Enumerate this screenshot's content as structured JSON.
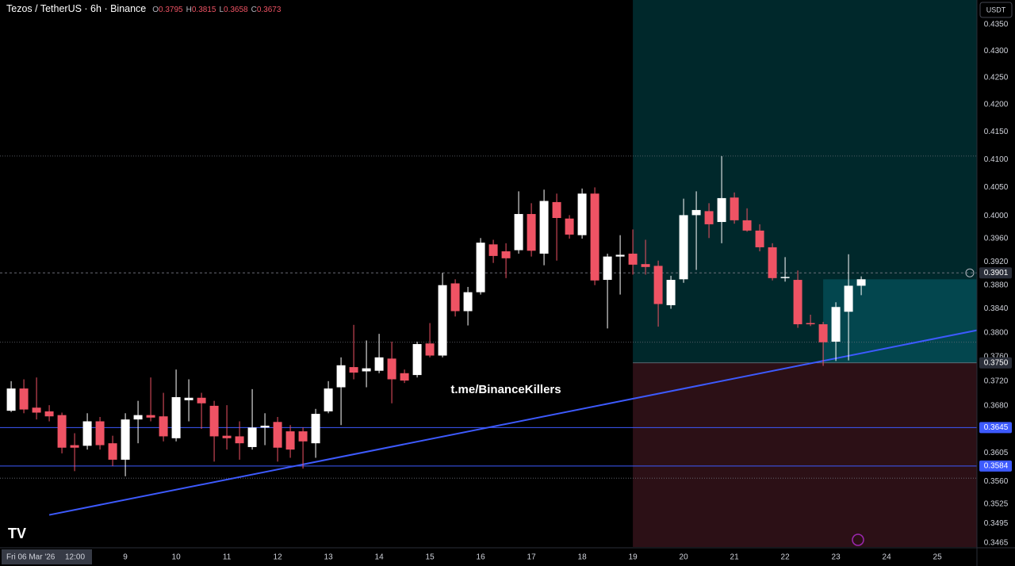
{
  "chart_data": {
    "type": "candlestick",
    "title": "Tezos / TetherUS · 6h · Binance",
    "header": [
      {
        "key": "O",
        "value": "0.3795"
      },
      {
        "key": "H",
        "value": "0.3815"
      },
      {
        "key": "L",
        "value": "0.3658"
      },
      {
        "key": "C",
        "value": "0.3673"
      }
    ],
    "currency": "USDT",
    "watermark": "t.me/BinanceKillers",
    "crosshair_date": "Fri 06 Mar '26",
    "crosshair_time": "12:00",
    "up_color": "#ffffff",
    "down_color": "#ef5364",
    "log_y": true,
    "xlim": [
      6.53,
      25.78
    ],
    "ylim": [
      0.3459,
      0.4397
    ],
    "xticks": [
      9,
      10,
      11,
      12,
      13,
      14,
      15,
      16,
      17,
      18,
      19,
      20,
      21,
      22,
      23,
      24,
      25
    ],
    "yticks": [
      {
        "value": 0.435,
        "label": "0.4350"
      },
      {
        "value": 0.43,
        "label": "0.4300"
      },
      {
        "value": 0.425,
        "label": "0.4250"
      },
      {
        "value": 0.42,
        "label": "0.4200"
      },
      {
        "value": 0.415,
        "label": "0.4150"
      },
      {
        "value": 0.41,
        "label": "0.4100"
      },
      {
        "value": 0.405,
        "label": "0.4050"
      },
      {
        "value": 0.4,
        "label": "0.4000"
      },
      {
        "value": 0.396,
        "label": "0.3960"
      },
      {
        "value": 0.392,
        "label": "0.3920"
      },
      {
        "value": 0.388,
        "label": "0.3880"
      },
      {
        "value": 0.384,
        "label": "0.3840"
      },
      {
        "value": 0.38,
        "label": "0.3800"
      },
      {
        "value": 0.376,
        "label": "0.3760"
      },
      {
        "value": 0.372,
        "label": "0.3720"
      },
      {
        "value": 0.368,
        "label": "0.3680"
      },
      {
        "value": 0.3605,
        "label": "0.3605"
      },
      {
        "value": 0.356,
        "label": "0.3560"
      },
      {
        "value": 0.3525,
        "label": "0.3525"
      },
      {
        "value": 0.3495,
        "label": "0.3495"
      },
      {
        "value": 0.3465,
        "label": "0.3465"
      }
    ],
    "x": [
      6.75,
      7.0,
      7.25,
      7.5,
      7.75,
      8.0,
      8.25,
      8.5,
      8.75,
      9.0,
      9.25,
      9.5,
      9.75,
      10.0,
      10.25,
      10.5,
      10.75,
      11.0,
      11.25,
      11.5,
      11.75,
      12.0,
      12.25,
      12.5,
      12.75,
      13.0,
      13.25,
      13.5,
      13.75,
      14.0,
      14.25,
      14.5,
      14.75,
      15.0,
      15.25,
      15.5,
      15.75,
      16.0,
      16.25,
      16.5,
      16.75,
      17.0,
      17.25,
      17.5,
      17.75,
      18.0,
      18.25,
      18.5,
      18.75,
      19.0,
      19.25,
      19.5,
      19.75,
      20.0,
      20.25,
      20.5,
      20.75,
      21.0,
      21.25,
      21.5,
      21.75,
      22.0,
      22.25,
      22.5,
      22.75,
      23.0,
      23.25,
      23.5
    ],
    "open": [
      0.3672,
      0.3708,
      0.3677,
      0.3671,
      0.3665,
      0.3617,
      0.3616,
      0.3655,
      0.362,
      0.3594,
      0.3658,
      0.3665,
      0.3663,
      0.3628,
      0.3689,
      0.3693,
      0.368,
      0.3632,
      0.3631,
      0.3614,
      0.3645,
      0.3654,
      0.3639,
      0.3639,
      0.362,
      0.3671,
      0.371,
      0.3743,
      0.3736,
      0.3737,
      0.3757,
      0.3733,
      0.373,
      0.3782,
      0.3762,
      0.3883,
      0.3836,
      0.3868,
      0.395,
      0.3938,
      0.394,
      0.4003,
      0.3934,
      0.4024,
      0.3995,
      0.3966,
      0.4039,
      0.3889,
      0.3929,
      0.3934,
      0.3916,
      0.3913,
      0.3846,
      0.389,
      0.4001,
      0.4008,
      0.3989,
      0.4032,
      0.3992,
      0.3974,
      0.3945,
      0.3892,
      0.3889,
      0.3816,
      0.3814,
      0.3785,
      0.3835,
      0.3879
    ],
    "high": [
      0.372,
      0.3723,
      0.3726,
      0.3681,
      0.3669,
      0.3636,
      0.3668,
      0.3662,
      0.3632,
      0.3668,
      0.3688,
      0.3726,
      0.3701,
      0.3739,
      0.3723,
      0.3701,
      0.3688,
      0.3681,
      0.3655,
      0.3707,
      0.3668,
      0.3662,
      0.3649,
      0.3645,
      0.3675,
      0.372,
      0.3759,
      0.3813,
      0.3787,
      0.3798,
      0.3785,
      0.3739,
      0.3785,
      0.3816,
      0.3901,
      0.389,
      0.3877,
      0.3961,
      0.3958,
      0.3952,
      0.4043,
      0.4022,
      0.4046,
      0.4039,
      0.4001,
      0.4048,
      0.405,
      0.3934,
      0.3966,
      0.3976,
      0.3958,
      0.3922,
      0.3896,
      0.403,
      0.4043,
      0.4022,
      0.4106,
      0.4041,
      0.4013,
      0.3985,
      0.3952,
      0.3928,
      0.3905,
      0.383,
      0.3818,
      0.3851,
      0.3933,
      0.3895
    ],
    "low": [
      0.367,
      0.3668,
      0.3658,
      0.3655,
      0.3604,
      0.3576,
      0.361,
      0.361,
      0.3584,
      0.3568,
      0.362,
      0.3655,
      0.3623,
      0.3623,
      0.3655,
      0.3643,
      0.3591,
      0.361,
      0.3594,
      0.361,
      0.3617,
      0.3591,
      0.3597,
      0.358,
      0.3597,
      0.3668,
      0.3649,
      0.3723,
      0.371,
      0.3733,
      0.3684,
      0.3717,
      0.3726,
      0.3759,
      0.3759,
      0.3827,
      0.3812,
      0.3864,
      0.3918,
      0.3892,
      0.3934,
      0.3929,
      0.3914,
      0.3922,
      0.396,
      0.396,
      0.388,
      0.3807,
      0.3864,
      0.3898,
      0.3898,
      0.381,
      0.384,
      0.3884,
      0.3906,
      0.3961,
      0.3952,
      0.3986,
      0.3972,
      0.3938,
      0.3888,
      0.3886,
      0.3808,
      0.3811,
      0.3745,
      0.3753,
      0.3754,
      0.3863
    ],
    "close": [
      0.3708,
      0.3674,
      0.3669,
      0.3663,
      0.3613,
      0.3613,
      0.3655,
      0.3617,
      0.3594,
      0.3658,
      0.3665,
      0.3661,
      0.3631,
      0.3694,
      0.3693,
      0.3684,
      0.3631,
      0.3628,
      0.362,
      0.3645,
      0.3648,
      0.3613,
      0.361,
      0.3623,
      0.3667,
      0.3708,
      0.3746,
      0.3734,
      0.3741,
      0.3759,
      0.3723,
      0.3721,
      0.3781,
      0.3762,
      0.388,
      0.3836,
      0.3868,
      0.3953,
      0.393,
      0.3926,
      0.4003,
      0.3939,
      0.4026,
      0.3996,
      0.3967,
      0.4039,
      0.3888,
      0.3929,
      0.3932,
      0.3915,
      0.3911,
      0.3848,
      0.3889,
      0.4001,
      0.401,
      0.3985,
      0.4031,
      0.3992,
      0.3974,
      0.3945,
      0.3892,
      0.3894,
      0.3814,
      0.3814,
      0.3784,
      0.3843,
      0.3879,
      0.389
    ],
    "zones": [
      {
        "x": [
          19.0,
          25.78
        ],
        "y": [
          0.375,
          0.4397
        ],
        "color": "#00282b"
      },
      {
        "x": [
          19.0,
          25.78
        ],
        "y": [
          0.3459,
          0.375
        ],
        "color": "#2c1016"
      },
      {
        "x": [
          22.75,
          25.78
        ],
        "y": [
          0.375,
          0.389
        ],
        "color": "#03464e"
      }
    ],
    "dotted_levels": [
      0.4106,
      0.3784,
      0.3565
    ],
    "current": {
      "value": 0.3901,
      "label": "0.3901"
    },
    "entry": {
      "value": 0.375,
      "label": "0.3750"
    },
    "levels": [
      {
        "value": 0.3645,
        "label": "0.3645"
      },
      {
        "value": 0.3584,
        "label": "0.3584"
      }
    ],
    "level_color": "#3d5afe",
    "trendline": {
      "x": [
        7.5,
        25.78
      ],
      "y": [
        0.3508,
        0.3804
      ]
    }
  }
}
